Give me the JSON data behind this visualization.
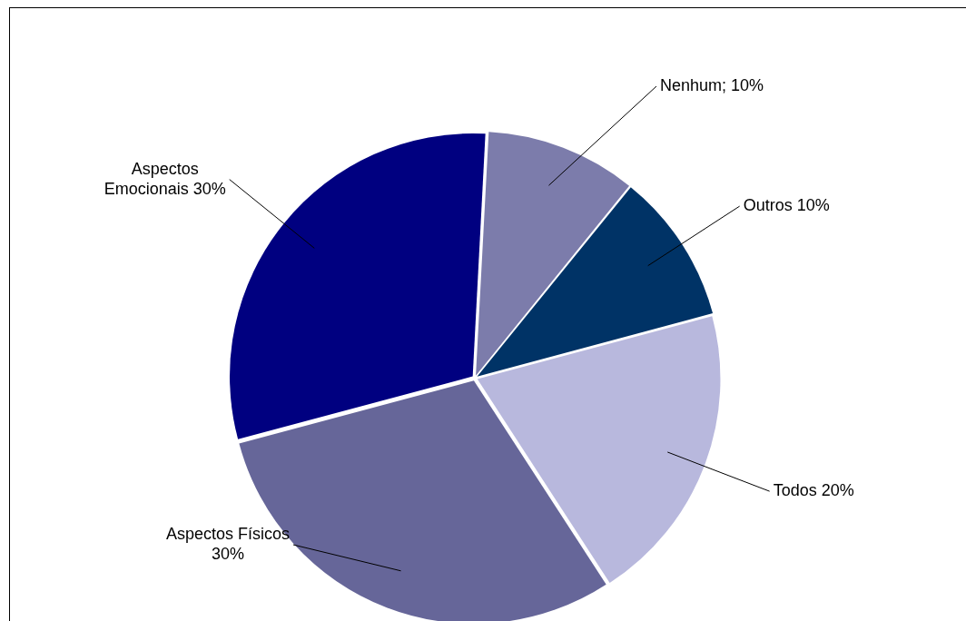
{
  "chart_data": {
    "type": "pie",
    "categories": [
      "Nenhum",
      "Outros",
      "Todos",
      "Aspectos Físicos",
      "Aspectos Emocionais"
    ],
    "values": [
      10,
      10,
      20,
      30,
      30
    ],
    "value_labels": [
      "; 10%",
      "10%",
      "20%",
      "30%",
      "30%"
    ],
    "colors": [
      "#7c7cab",
      "#003366",
      "#b8b8dd",
      "#666699",
      "#000080"
    ],
    "legend": false
  }
}
